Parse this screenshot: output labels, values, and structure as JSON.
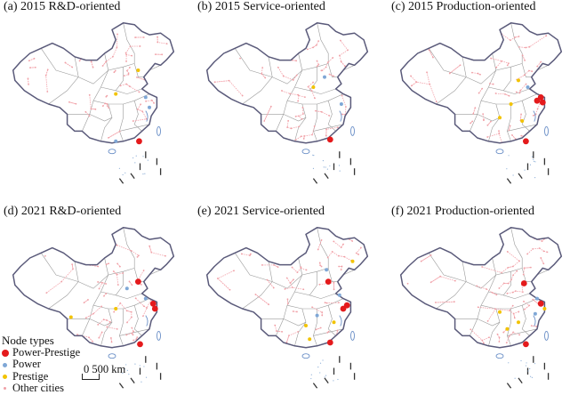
{
  "panels": [
    {
      "title": "(a) 2015 R&D-oriented",
      "pp": [
        [
          0.745,
          0.72
        ]
      ],
      "pw": [
        [
          0.78,
          0.46
        ],
        [
          0.8,
          0.52
        ],
        [
          0.62,
          0.72
        ]
      ],
      "ps": [
        [
          0.74,
          0.3
        ],
        [
          0.62,
          0.44
        ]
      ],
      "seed": 11
    },
    {
      "title": "(b) 2015 Service-oriented",
      "pp": [
        [
          0.73,
          0.71
        ]
      ],
      "pw": [
        [
          0.7,
          0.34
        ],
        [
          0.79,
          0.5
        ]
      ],
      "ps": [
        [
          0.64,
          0.4
        ]
      ],
      "seed": 23
    },
    {
      "title": "(c) 2015 Production-oriented",
      "pp": [
        [
          0.82,
          0.46
        ],
        [
          0.83,
          0.49
        ],
        [
          0.8,
          0.48
        ],
        [
          0.74,
          0.72
        ]
      ],
      "pw": [
        [
          0.75,
          0.4
        ]
      ],
      "ps": [
        [
          0.7,
          0.36
        ],
        [
          0.66,
          0.5
        ],
        [
          0.6,
          0.58
        ],
        [
          0.72,
          0.6
        ]
      ],
      "seed": 37
    },
    {
      "title": "(d) 2021 R&D-oriented",
      "pp": [
        [
          0.74,
          0.34
        ],
        [
          0.82,
          0.47
        ],
        [
          0.83,
          0.5
        ],
        [
          0.75,
          0.71
        ]
      ],
      "pw": [
        [
          0.68,
          0.38
        ],
        [
          0.78,
          0.44
        ]
      ],
      "ps": [
        [
          0.38,
          0.55
        ],
        [
          0.62,
          0.5
        ]
      ],
      "seed": 41
    },
    {
      "title": "(e) 2021 Service-oriented",
      "pp": [
        [
          0.72,
          0.34
        ],
        [
          0.8,
          0.5
        ],
        [
          0.82,
          0.48
        ],
        [
          0.73,
          0.7
        ]
      ],
      "pw": [
        [
          0.71,
          0.27
        ],
        [
          0.78,
          0.42
        ],
        [
          0.66,
          0.54
        ]
      ],
      "ps": [
        [
          0.85,
          0.22
        ],
        [
          0.75,
          0.58
        ],
        [
          0.6,
          0.6
        ],
        [
          0.62,
          0.68
        ]
      ],
      "seed": 53
    },
    {
      "title": "(f) 2021 Production-oriented",
      "pp": [
        [
          0.73,
          0.35
        ],
        [
          0.82,
          0.47
        ],
        [
          0.74,
          0.71
        ]
      ],
      "pw": [
        [
          0.8,
          0.44
        ],
        [
          0.79,
          0.53
        ]
      ],
      "ps": [
        [
          0.84,
          0.5
        ],
        [
          0.7,
          0.58
        ],
        [
          0.64,
          0.62
        ],
        [
          0.6,
          0.52
        ]
      ],
      "seed": 67
    }
  ],
  "legend": {
    "title": "Node types",
    "items": [
      {
        "label": "Power-Prestige",
        "color": "#e41a1c"
      },
      {
        "label": "Power",
        "color": "#7fa7d6"
      },
      {
        "label": "Prestige",
        "color": "#f2c300"
      },
      {
        "label": "Other cities",
        "color": "#f0a0a6"
      }
    ]
  },
  "scalebar": {
    "label": "0 500 km"
  },
  "colors": {
    "border": "#5a5a7a",
    "province": "#9a9a9a",
    "link": "#f3a2aa"
  }
}
